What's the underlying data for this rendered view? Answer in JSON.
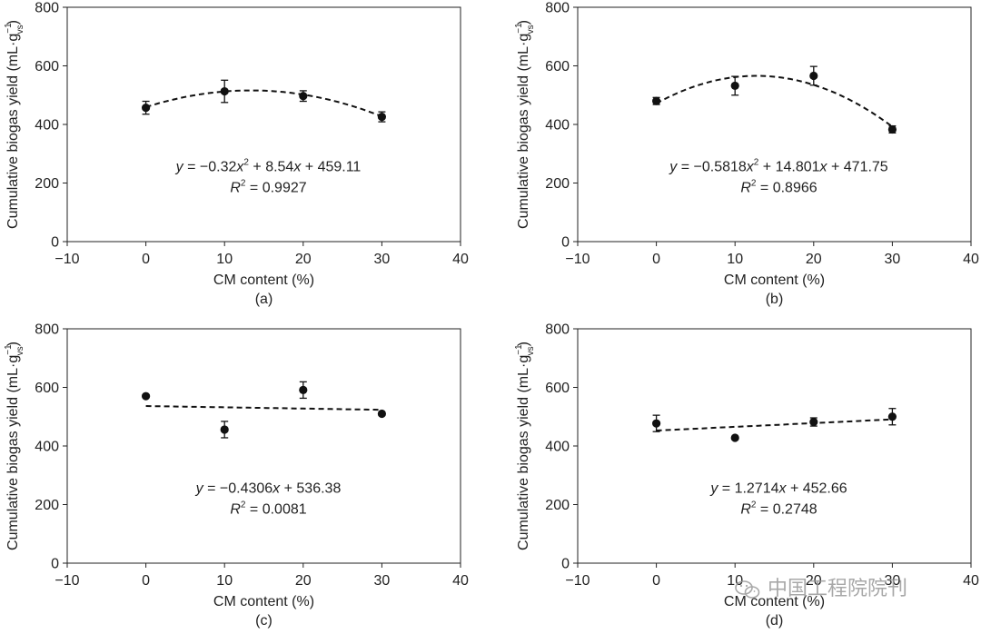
{
  "watermark": "中国工程院院刊",
  "chart_data": [
    {
      "type": "scatter",
      "panel_label": "(a)",
      "xlabel": "CM content (%)",
      "ylabel": "Cumulative biogas yield (mL·g",
      "ylabel_sup": "−1",
      "ylabel_sub": "vs",
      "ylabel_end": ")",
      "xlim": [
        -10,
        40
      ],
      "ylim": [
        0,
        800
      ],
      "xticks": [
        -10,
        0,
        10,
        20,
        30,
        40
      ],
      "xtick_labels": [
        "−10",
        "0",
        "10",
        "20",
        "30",
        "40"
      ],
      "yticks": [
        0,
        200,
        400,
        600,
        800
      ],
      "x": [
        0,
        10,
        20,
        30
      ],
      "y": [
        457,
        513,
        497,
        426
      ],
      "error": [
        22,
        38,
        18,
        17
      ],
      "fit": {
        "type": "poly2",
        "a": -0.32,
        "b": 8.54,
        "c": 459.11,
        "x_range": [
          0,
          30
        ]
      },
      "equation": {
        "y": "y",
        "rhs1": " = −0.32",
        "x1": "x",
        "sq": "2",
        "rhs2": " + 8.54",
        "x2": "x",
        "rhs3": " + 459.11"
      },
      "r2": {
        "r": "R",
        "sq": "2",
        "value": " = 0.9927"
      }
    },
    {
      "type": "scatter",
      "panel_label": "(b)",
      "xlabel": "CM content (%)",
      "ylabel": "Cumulative biogas yield (mL·g",
      "ylabel_sup": "−1",
      "ylabel_sub": "vs",
      "ylabel_end": ")",
      "xlim": [
        -10,
        40
      ],
      "ylim": [
        0,
        800
      ],
      "xticks": [
        -10,
        0,
        10,
        20,
        30,
        40
      ],
      "xtick_labels": [
        "−10",
        "0",
        "10",
        "20",
        "30",
        "40"
      ],
      "yticks": [
        0,
        200,
        400,
        600,
        800
      ],
      "x": [
        0,
        10,
        20,
        30
      ],
      "y": [
        480,
        532,
        566,
        383
      ],
      "error": [
        12,
        32,
        32,
        12
      ],
      "fit": {
        "type": "poly2",
        "a": -0.5818,
        "b": 14.801,
        "c": 471.75,
        "x_range": [
          0,
          30
        ]
      },
      "equation": {
        "y": "y",
        "rhs1": " = −0.5818",
        "x1": "x",
        "sq": "2",
        "rhs2": " + 14.801",
        "x2": "x",
        "rhs3": " + 471.75"
      },
      "r2": {
        "r": "R",
        "sq": "2",
        "value": " = 0.8966"
      }
    },
    {
      "type": "scatter",
      "panel_label": "(c)",
      "xlabel": "CM content (%)",
      "ylabel": "Cumulative biogas yield (mL·g",
      "ylabel_sup": "−1",
      "ylabel_sub": "vs",
      "ylabel_end": ")",
      "xlim": [
        -10,
        40
      ],
      "ylim": [
        0,
        800
      ],
      "xticks": [
        -10,
        0,
        10,
        20,
        30,
        40
      ],
      "xtick_labels": [
        "−10",
        "0",
        "10",
        "20",
        "30",
        "40"
      ],
      "yticks": [
        0,
        200,
        400,
        600,
        800
      ],
      "x": [
        0,
        10,
        20,
        30
      ],
      "y": [
        570,
        456,
        591,
        510
      ],
      "error": [
        0,
        28,
        28,
        0
      ],
      "fit": {
        "type": "poly1",
        "a": 0,
        "b": -0.4306,
        "c": 536.38,
        "x_range": [
          0,
          30
        ]
      },
      "equation": {
        "y": "y",
        "rhs1": " = −0.4306",
        "x1": "x",
        "sq": "",
        "rhs2": " + 536.38",
        "x2": "",
        "rhs3": ""
      },
      "r2": {
        "r": "R",
        "sq": "2",
        "value": " = 0.0081"
      }
    },
    {
      "type": "scatter",
      "panel_label": "(d)",
      "xlabel": "CM content (%)",
      "ylabel": "Cumulative biogas yield (mL·g",
      "ylabel_sup": "−1",
      "ylabel_sub": "vs",
      "ylabel_end": ")",
      "xlim": [
        -10,
        40
      ],
      "ylim": [
        0,
        800
      ],
      "xticks": [
        -10,
        0,
        10,
        20,
        30,
        40
      ],
      "xtick_labels": [
        "−10",
        "0",
        "10",
        "20",
        "30",
        "40"
      ],
      "yticks": [
        0,
        200,
        400,
        600,
        800
      ],
      "x": [
        0,
        10,
        20,
        30
      ],
      "y": [
        477,
        428,
        482,
        500
      ],
      "error": [
        28,
        0,
        14,
        28
      ],
      "fit": {
        "type": "poly1",
        "a": 0,
        "b": 1.2714,
        "c": 452.66,
        "x_range": [
          0,
          30
        ]
      },
      "equation": {
        "y": "y",
        "rhs1": " = 1.2714",
        "x1": "x",
        "sq": "",
        "rhs2": " + 452.66",
        "x2": "",
        "rhs3": ""
      },
      "r2": {
        "r": "R",
        "sq": "2",
        "value": " = 0.2748"
      }
    }
  ]
}
